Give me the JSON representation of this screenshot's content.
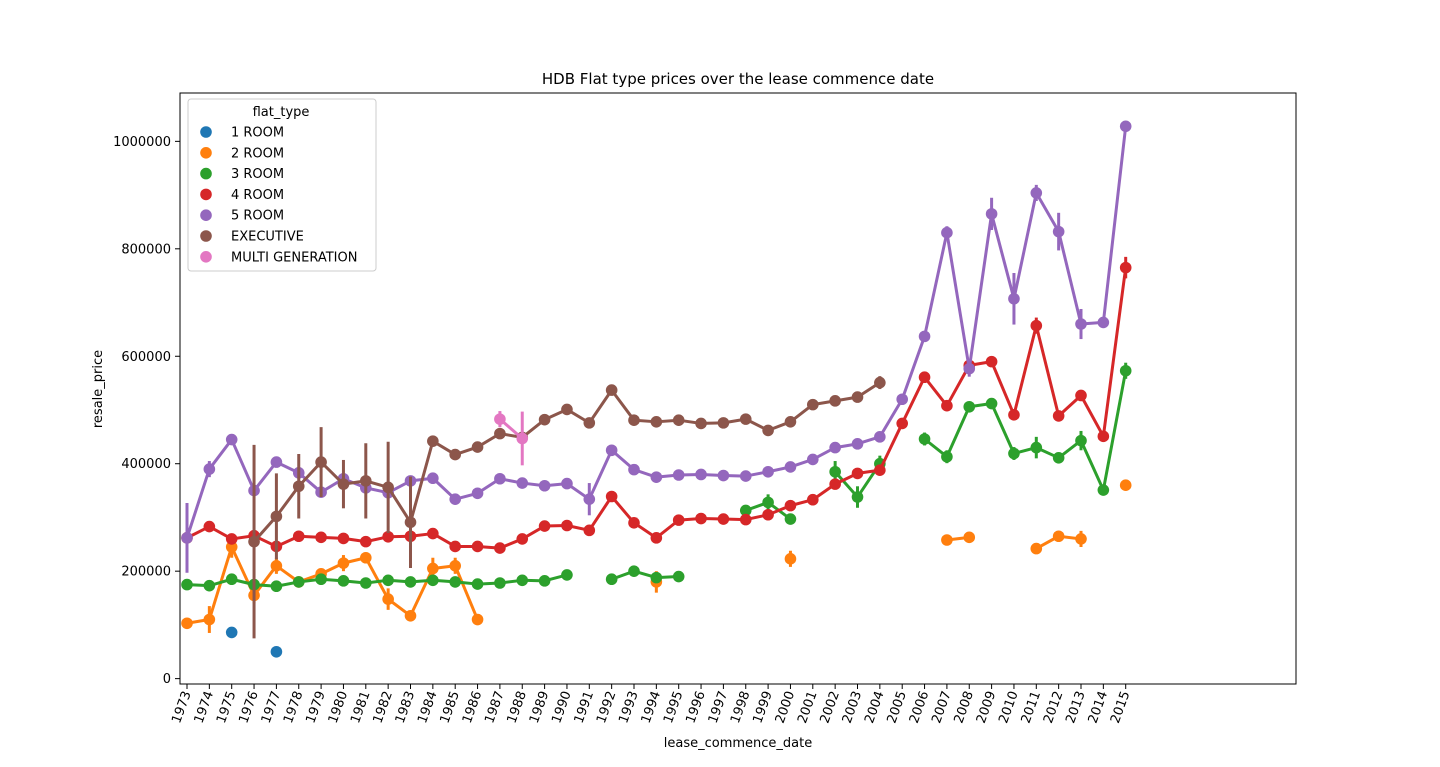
{
  "chart_data": {
    "type": "line",
    "title": "HDB Flat type prices over the lease commence date",
    "xlabel": "lease_commence_date",
    "ylabel": "resale_price",
    "ylim": [
      -10000,
      1090000
    ],
    "yticks": [
      0,
      200000,
      400000,
      600000,
      800000,
      1000000
    ],
    "ytick_labels": [
      "0",
      "200000",
      "400000",
      "600000",
      "800000",
      "1000000"
    ],
    "categories": [
      "1973",
      "1974",
      "1975",
      "1976",
      "1977",
      "1978",
      "1979",
      "1980",
      "1981",
      "1982",
      "1983",
      "1984",
      "1985",
      "1986",
      "1987",
      "1988",
      "1989",
      "1990",
      "1991",
      "1992",
      "1993",
      "1994",
      "1995",
      "1996",
      "1997",
      "1998",
      "1999",
      "2000",
      "2001",
      "2002",
      "2003",
      "2004",
      "2005",
      "2006",
      "2007",
      "2008",
      "2009",
      "2010",
      "2011",
      "2012",
      "2013",
      "2014",
      "2015"
    ],
    "grid": false,
    "legend": {
      "title": "flat_type",
      "position": "top-left"
    },
    "series": [
      {
        "name": "1 ROOM",
        "color": "#1f77b4",
        "values": [
          null,
          null,
          86000,
          null,
          50000,
          null,
          null,
          null,
          null,
          null,
          null,
          null,
          null,
          null,
          null,
          null,
          null,
          null,
          null,
          null,
          null,
          null,
          null,
          null,
          null,
          null,
          null,
          null,
          null,
          null,
          null,
          null,
          null,
          null,
          null,
          null,
          null,
          null,
          null,
          null,
          null,
          null,
          null
        ],
        "errors": [
          null,
          null,
          5000,
          null,
          5000,
          null,
          null,
          null,
          null,
          null,
          null,
          null,
          null,
          null,
          null,
          null,
          null,
          null,
          null,
          null,
          null,
          null,
          null,
          null,
          null,
          null,
          null,
          null,
          null,
          null,
          null,
          null,
          null,
          null,
          null,
          null,
          null,
          null,
          null,
          null,
          null,
          null,
          null
        ]
      },
      {
        "name": "2 ROOM",
        "color": "#ff7f0e",
        "values": [
          103000,
          110000,
          245000,
          155000,
          210000,
          180000,
          195000,
          215000,
          225000,
          148000,
          117000,
          205000,
          210000,
          110000,
          null,
          null,
          null,
          null,
          null,
          null,
          null,
          180000,
          null,
          null,
          null,
          null,
          null,
          223000,
          null,
          null,
          null,
          null,
          null,
          null,
          258000,
          263000,
          null,
          null,
          242000,
          265000,
          260000,
          null,
          360000
        ],
        "errors": [
          5000,
          25000,
          20000,
          15000,
          15000,
          5000,
          5000,
          15000,
          10000,
          20000,
          5000,
          20000,
          15000,
          5000,
          null,
          null,
          null,
          null,
          null,
          null,
          null,
          20000,
          null,
          null,
          null,
          null,
          null,
          15000,
          null,
          null,
          null,
          null,
          null,
          null,
          5000,
          5000,
          null,
          null,
          5000,
          5000,
          15000,
          null,
          5000
        ]
      },
      {
        "name": "3 ROOM",
        "color": "#2ca02c",
        "values": [
          175000,
          173000,
          185000,
          175000,
          172000,
          180000,
          185000,
          182000,
          178000,
          183000,
          180000,
          183000,
          180000,
          176000,
          178000,
          183000,
          182000,
          193000,
          null,
          185000,
          200000,
          188000,
          190000,
          null,
          null,
          313000,
          328000,
          297000,
          null,
          385000,
          338000,
          400000,
          null,
          446000,
          413000,
          506000,
          512000,
          419000,
          430000,
          411000,
          443000,
          351000,
          573000
        ],
        "errors": [
          5000,
          5000,
          5000,
          5000,
          5000,
          5000,
          5000,
          5000,
          5000,
          5000,
          5000,
          5000,
          5000,
          5000,
          5000,
          5000,
          5000,
          5000,
          null,
          10000,
          5000,
          10000,
          10000,
          null,
          null,
          10000,
          15000,
          10000,
          null,
          20000,
          20000,
          15000,
          null,
          12000,
          12000,
          5000,
          8000,
          12000,
          20000,
          10000,
          18000,
          8000,
          15000
        ]
      },
      {
        "name": "4 ROOM",
        "color": "#d62728",
        "values": [
          262000,
          283000,
          260000,
          266000,
          246000,
          265000,
          263000,
          261000,
          255000,
          264000,
          265000,
          270000,
          246000,
          246000,
          243000,
          260000,
          284000,
          285000,
          276000,
          339000,
          290000,
          262000,
          295000,
          298000,
          297000,
          296000,
          305000,
          322000,
          333000,
          362000,
          382000,
          388000,
          475000,
          561000,
          508000,
          583000,
          590000,
          491000,
          657000,
          489000,
          527000,
          451000,
          765000
        ],
        "errors": [
          8000,
          5000,
          5000,
          5000,
          5000,
          5000,
          5000,
          5000,
          5000,
          5000,
          5000,
          5000,
          5000,
          5000,
          5000,
          5000,
          5000,
          5000,
          5000,
          5000,
          5000,
          5000,
          5000,
          5000,
          5000,
          5000,
          5000,
          5000,
          5000,
          5000,
          5000,
          5000,
          5000,
          5000,
          8000,
          5000,
          5000,
          5000,
          15000,
          5000,
          10000,
          10000,
          20000
        ]
      },
      {
        "name": "5 ROOM",
        "color": "#9467bd",
        "values": [
          262000,
          390000,
          445000,
          350000,
          403000,
          383000,
          347000,
          372000,
          355000,
          346000,
          368000,
          373000,
          334000,
          345000,
          372000,
          364000,
          359000,
          363000,
          334000,
          425000,
          389000,
          375000,
          379000,
          380000,
          378000,
          377000,
          385000,
          394000,
          408000,
          430000,
          437000,
          450000,
          520000,
          637000,
          830000,
          577000,
          865000,
          707000,
          904000,
          832000,
          660000,
          663000,
          1028000
        ],
        "errors": [
          65000,
          15000,
          5000,
          5000,
          5000,
          5000,
          5000,
          5000,
          5000,
          5000,
          5000,
          5000,
          5000,
          5000,
          5000,
          5000,
          5000,
          5000,
          30000,
          5000,
          5000,
          5000,
          5000,
          5000,
          5000,
          5000,
          5000,
          5000,
          5000,
          5000,
          5000,
          5000,
          5000,
          5000,
          12000,
          15000,
          30000,
          48000,
          15000,
          35000,
          28000,
          5000,
          5000
        ]
      },
      {
        "name": "EXECUTIVE",
        "color": "#8c564b",
        "values": [
          null,
          null,
          null,
          255000,
          302000,
          358000,
          403000,
          362000,
          368000,
          356000,
          291000,
          442000,
          417000,
          431000,
          456000,
          449000,
          482000,
          501000,
          476000,
          537000,
          481000,
          478000,
          481000,
          475000,
          476000,
          483000,
          462000,
          478000,
          510000,
          517000,
          524000,
          551000,
          null,
          null,
          null,
          null,
          null,
          null,
          null,
          null,
          null,
          null,
          null
        ],
        "errors": [
          null,
          null,
          null,
          180000,
          80000,
          60000,
          65000,
          45000,
          70000,
          85000,
          85000,
          5000,
          5000,
          5000,
          5000,
          10000,
          5000,
          10000,
          10000,
          5000,
          5000,
          5000,
          5000,
          5000,
          5000,
          5000,
          5000,
          5000,
          5000,
          5000,
          5000,
          12000,
          null,
          null,
          null,
          null,
          null,
          null,
          null,
          null,
          null,
          null,
          null
        ]
      },
      {
        "name": "MULTI GENERATION",
        "color": "#e377c2",
        "values": [
          null,
          null,
          null,
          null,
          null,
          null,
          null,
          null,
          null,
          null,
          null,
          null,
          null,
          null,
          483000,
          447000,
          null,
          null,
          null,
          null,
          null,
          null,
          null,
          null,
          null,
          null,
          null,
          null,
          null,
          null,
          null,
          null,
          null,
          null,
          null,
          null,
          null,
          null,
          null,
          null,
          null,
          null,
          null
        ],
        "errors": [
          null,
          null,
          null,
          null,
          null,
          null,
          null,
          null,
          null,
          null,
          null,
          null,
          null,
          null,
          15000,
          50000,
          null,
          null,
          null,
          null,
          null,
          null,
          null,
          null,
          null,
          null,
          null,
          null,
          null,
          null,
          null,
          null,
          null,
          null,
          null,
          null,
          null,
          null,
          null,
          null,
          null,
          null,
          null
        ]
      }
    ]
  }
}
